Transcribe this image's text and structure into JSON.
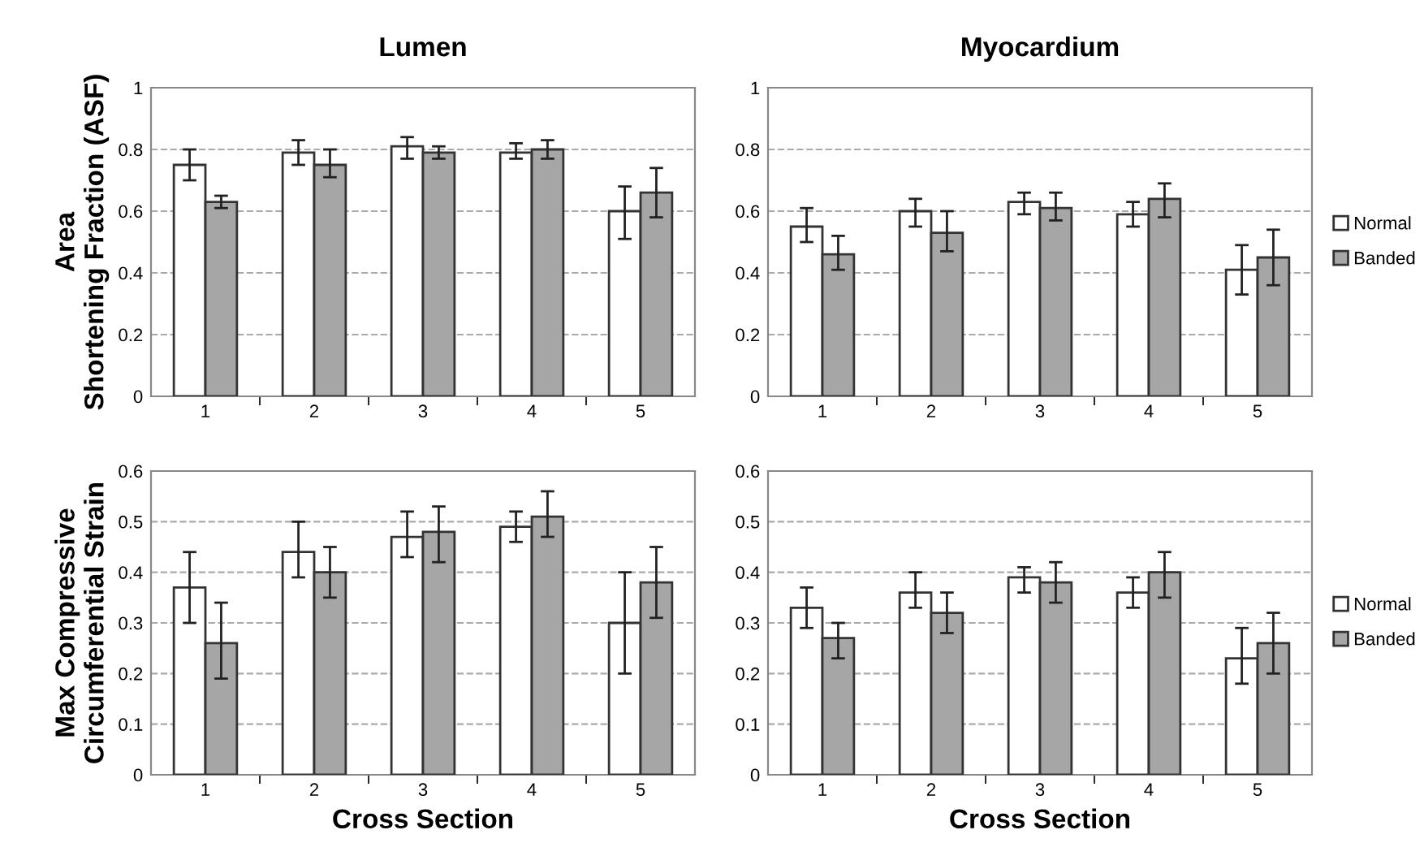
{
  "chart_data": [
    {
      "type": "bar",
      "title": "Lumen",
      "ylabel": "Area\nShortening Fraction (ASF)",
      "categories": [
        "1",
        "2",
        "3",
        "4",
        "5"
      ],
      "ylim": [
        0,
        1
      ],
      "yticks": [
        0,
        0.2,
        0.4,
        0.6,
        0.8,
        1
      ],
      "grid": "y",
      "series": [
        {
          "color": "#ffffff",
          "values": [
            0.75,
            0.79,
            0.81,
            0.79,
            0.6
          ],
          "errors": [
            [
              0.7,
              0.8
            ],
            [
              0.75,
              0.83
            ],
            [
              0.77,
              0.84
            ],
            [
              0.77,
              0.82
            ],
            [
              0.51,
              0.68
            ]
          ]
        },
        {
          "color": "#a6a6a6",
          "values": [
            0.63,
            0.75,
            0.79,
            0.8,
            0.66
          ],
          "errors": [
            [
              0.61,
              0.65
            ],
            [
              0.71,
              0.8
            ],
            [
              0.77,
              0.81
            ],
            [
              0.77,
              0.83
            ],
            [
              0.58,
              0.74
            ]
          ]
        }
      ]
    },
    {
      "type": "bar",
      "title": "Myocardium",
      "categories": [
        "1",
        "2",
        "3",
        "4",
        "5"
      ],
      "ylim": [
        0,
        1
      ],
      "yticks": [
        0,
        0.2,
        0.4,
        0.6,
        0.8,
        1
      ],
      "grid": "y",
      "legend": "right",
      "series": [
        {
          "name": "Normal",
          "color": "#ffffff",
          "values": [
            0.55,
            0.6,
            0.63,
            0.59,
            0.41
          ],
          "errors": [
            [
              0.5,
              0.61
            ],
            [
              0.55,
              0.64
            ],
            [
              0.59,
              0.66
            ],
            [
              0.55,
              0.63
            ],
            [
              0.33,
              0.49
            ]
          ]
        },
        {
          "name": "Banded",
          "color": "#a6a6a6",
          "values": [
            0.46,
            0.53,
            0.61,
            0.64,
            0.45
          ],
          "errors": [
            [
              0.41,
              0.52
            ],
            [
              0.47,
              0.6
            ],
            [
              0.57,
              0.66
            ],
            [
              0.58,
              0.69
            ],
            [
              0.36,
              0.54
            ]
          ]
        }
      ]
    },
    {
      "type": "bar",
      "ylabel": "Max Compressive\nCircumferential Strain",
      "xlabel": "Cross Section",
      "categories": [
        "1",
        "2",
        "3",
        "4",
        "5"
      ],
      "ylim": [
        0,
        0.6
      ],
      "yticks": [
        0,
        0.1,
        0.2,
        0.3,
        0.4,
        0.5,
        0.6
      ],
      "grid": "y",
      "series": [
        {
          "color": "#ffffff",
          "values": [
            0.37,
            0.44,
            0.47,
            0.49,
            0.3
          ],
          "errors": [
            [
              0.3,
              0.44
            ],
            [
              0.39,
              0.5
            ],
            [
              0.43,
              0.52
            ],
            [
              0.46,
              0.52
            ],
            [
              0.2,
              0.4
            ]
          ]
        },
        {
          "color": "#a6a6a6",
          "values": [
            0.26,
            0.4,
            0.48,
            0.51,
            0.38
          ],
          "errors": [
            [
              0.19,
              0.34
            ],
            [
              0.35,
              0.45
            ],
            [
              0.42,
              0.53
            ],
            [
              0.47,
              0.56
            ],
            [
              0.31,
              0.45
            ]
          ]
        }
      ]
    },
    {
      "type": "bar",
      "xlabel": "Cross Section",
      "categories": [
        "1",
        "2",
        "3",
        "4",
        "5"
      ],
      "ylim": [
        0,
        0.6
      ],
      "yticks": [
        0,
        0.1,
        0.2,
        0.3,
        0.4,
        0.5,
        0.6
      ],
      "grid": "y",
      "legend": "right",
      "series": [
        {
          "name": "Normal",
          "color": "#ffffff",
          "values": [
            0.33,
            0.36,
            0.39,
            0.36,
            0.23
          ],
          "errors": [
            [
              0.29,
              0.37
            ],
            [
              0.33,
              0.4
            ],
            [
              0.36,
              0.41
            ],
            [
              0.33,
              0.39
            ],
            [
              0.18,
              0.29
            ]
          ]
        },
        {
          "name": "Banded",
          "color": "#a6a6a6",
          "values": [
            0.27,
            0.32,
            0.38,
            0.4,
            0.26
          ],
          "errors": [
            [
              0.23,
              0.3
            ],
            [
              0.28,
              0.36
            ],
            [
              0.34,
              0.42
            ],
            [
              0.35,
              0.44
            ],
            [
              0.2,
              0.32
            ]
          ]
        }
      ]
    }
  ]
}
